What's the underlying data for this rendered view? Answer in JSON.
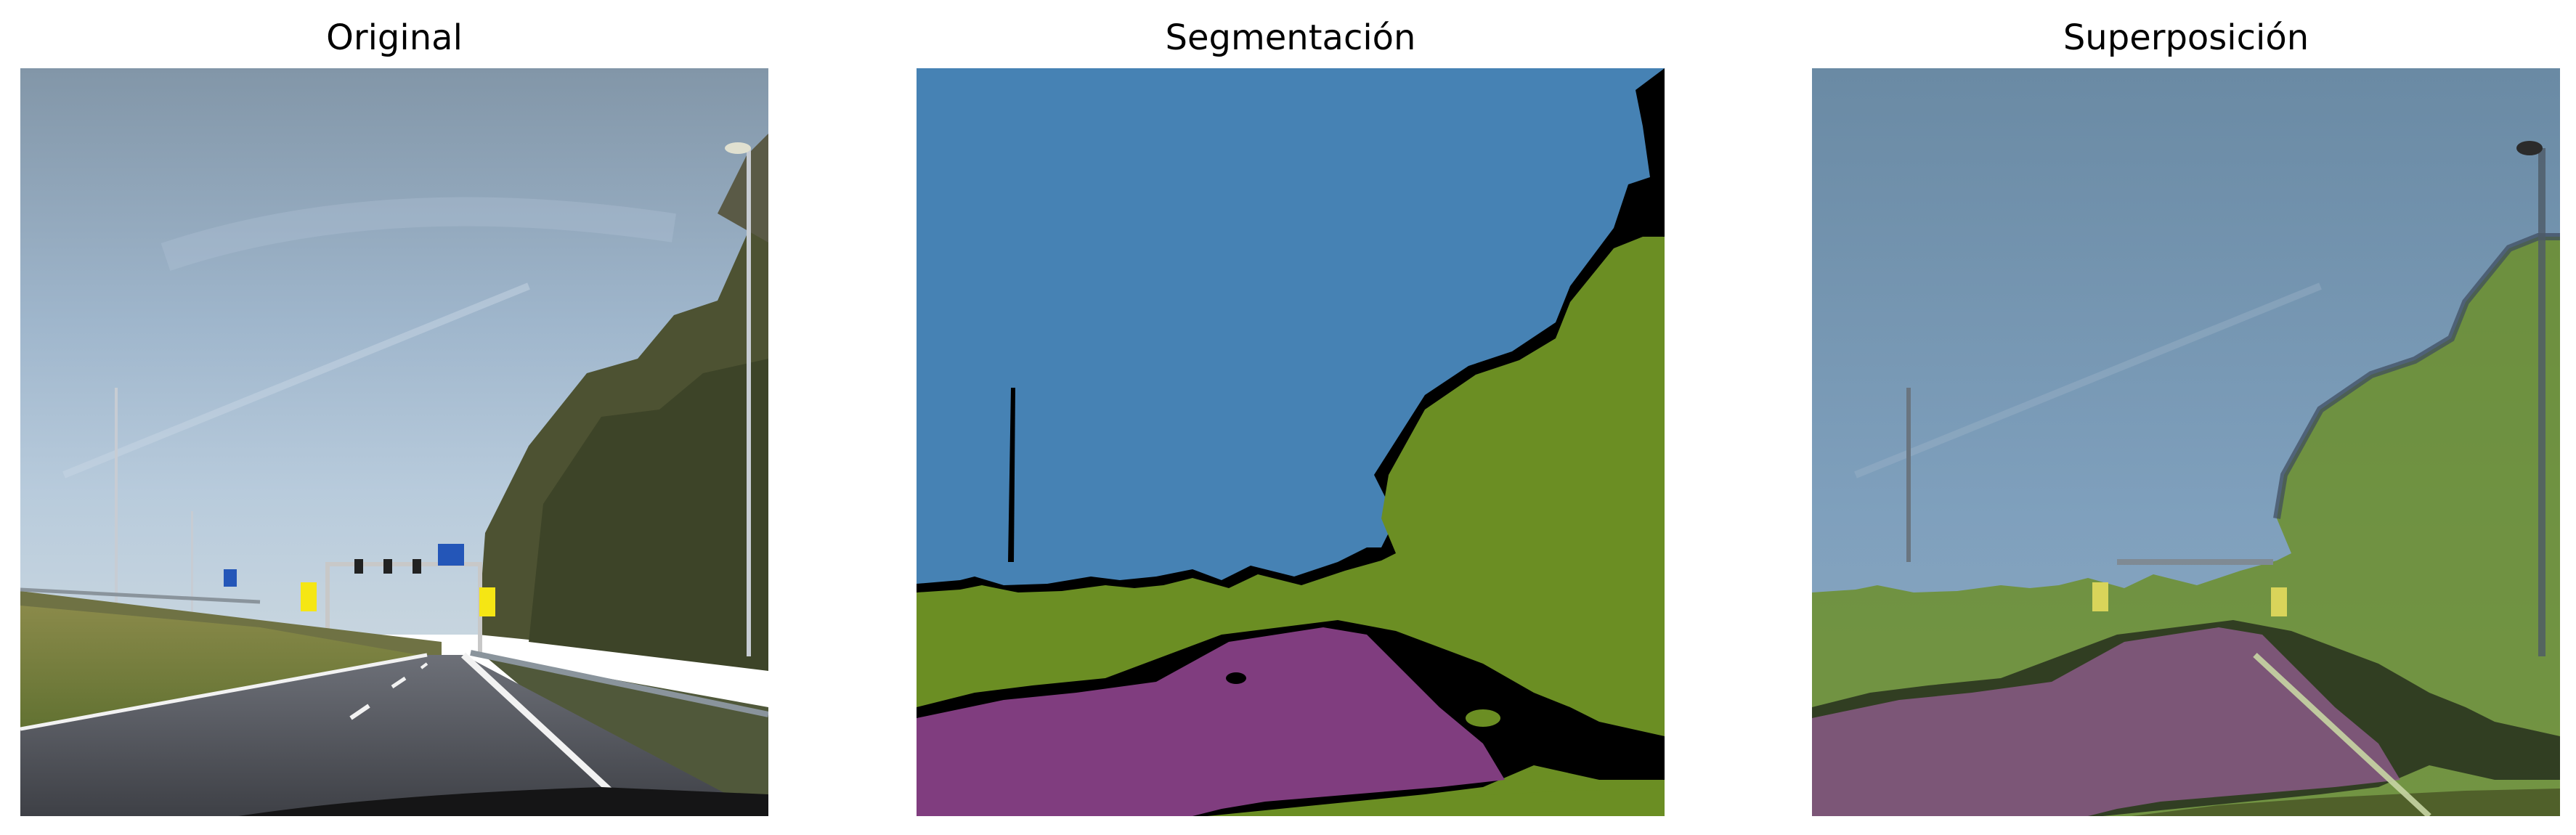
{
  "panels": [
    {
      "title": "Original"
    },
    {
      "title": "Segmentación"
    },
    {
      "title": "Superposición"
    }
  ],
  "colors": {
    "sky": "#4682b4",
    "vegetation": "#6b8e23",
    "road": "#803d7f",
    "void": "#000000"
  }
}
